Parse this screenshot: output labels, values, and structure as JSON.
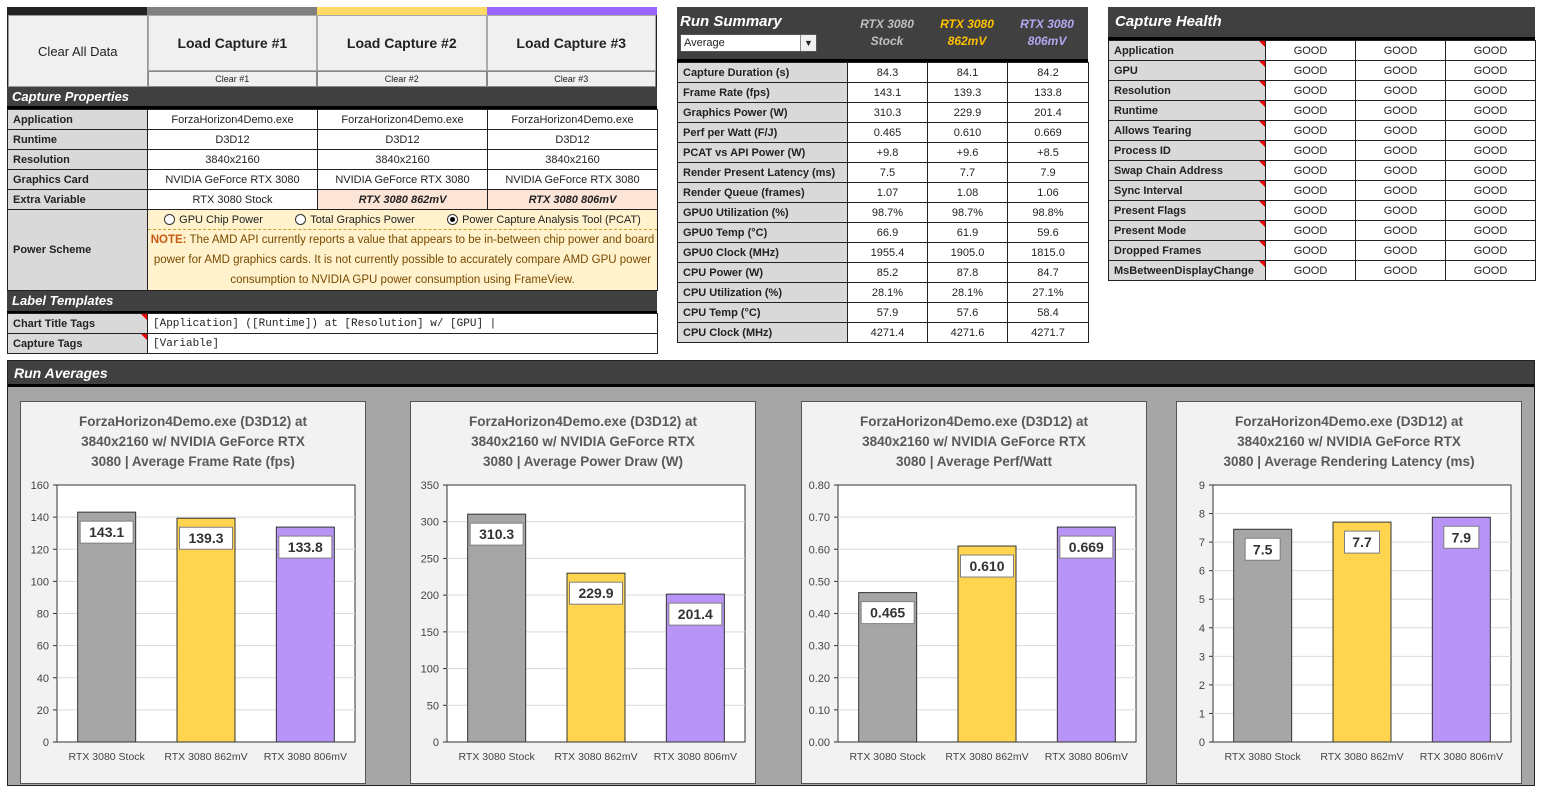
{
  "colors": {
    "capture1": "#a6a6a6",
    "capture2": "#ffd54f",
    "capture3": "#b794f6",
    "header_bg": "#404040",
    "capture1_text": "#bfbfbf",
    "capture2_text": "#ffc000",
    "capture3_text": "#b4a7f0"
  },
  "controls": {
    "clear_all": "Clear All Data",
    "load": [
      "Load Capture #1",
      "Load Capture #2",
      "Load Capture #3"
    ],
    "clear": [
      "Clear #1",
      "Clear #2",
      "Clear #3"
    ]
  },
  "capture_properties": {
    "title": "Capture Properties",
    "rows": [
      {
        "label": "Application",
        "values": [
          "ForzaHorizon4Demo.exe",
          "ForzaHorizon4Demo.exe",
          "ForzaHorizon4Demo.exe"
        ]
      },
      {
        "label": "Runtime",
        "values": [
          "D3D12",
          "D3D12",
          "D3D12"
        ]
      },
      {
        "label": "Resolution",
        "values": [
          "3840x2160",
          "3840x2160",
          "3840x2160"
        ]
      },
      {
        "label": "Graphics Card",
        "values": [
          "NVIDIA GeForce RTX 3080",
          "NVIDIA GeForce RTX 3080",
          "NVIDIA GeForce RTX 3080"
        ]
      },
      {
        "label": "Extra Variable",
        "values": [
          "RTX 3080 Stock",
          "RTX 3080 862mV",
          "RTX 3080 806mV"
        ]
      }
    ],
    "power_scheme": {
      "label": "Power Scheme",
      "options": [
        "GPU Chip Power",
        "Total Graphics Power",
        "Power Capture Analysis Tool (PCAT)"
      ],
      "selected": 2,
      "note_prefix": "NOTE:",
      "note": " The AMD API currently reports a value that appears to be in-between chip power and board power for AMD graphics cards. It is not currently possible to accurately compare AMD GPU power consumption to NVIDIA GPU power consumption using FrameView."
    }
  },
  "label_templates": {
    "title": "Label Templates",
    "rows": [
      {
        "label": "Chart Title Tags",
        "value": "[Application] ([Runtime]) at [Resolution] w/ [GPU] |"
      },
      {
        "label": "Capture Tags",
        "value": "[Variable]"
      }
    ]
  },
  "run_summary": {
    "title": "Run Summary",
    "dropdown": "Average",
    "columns": [
      [
        "RTX 3080",
        "Stock"
      ],
      [
        "RTX 3080",
        "862mV"
      ],
      [
        "RTX 3080",
        "806mV"
      ]
    ],
    "rows": [
      {
        "label": "Capture Duration (s)",
        "values": [
          "84.3",
          "84.1",
          "84.2"
        ]
      },
      {
        "label": "Frame Rate (fps)",
        "values": [
          "143.1",
          "139.3",
          "133.8"
        ]
      },
      {
        "label": "Graphics Power (W)",
        "values": [
          "310.3",
          "229.9",
          "201.4"
        ]
      },
      {
        "label": "Perf per Watt (F/J)",
        "values": [
          "0.465",
          "0.610",
          "0.669"
        ]
      },
      {
        "label": "PCAT vs API Power (W)",
        "values": [
          "+9.8",
          "+9.6",
          "+8.5"
        ]
      },
      {
        "label": "Render Present Latency (ms)",
        "values": [
          "7.5",
          "7.7",
          "7.9"
        ]
      },
      {
        "label": "Render Queue (frames)",
        "values": [
          "1.07",
          "1.08",
          "1.06"
        ]
      },
      {
        "label": "GPU0 Utilization (%)",
        "values": [
          "98.7%",
          "98.7%",
          "98.8%"
        ]
      },
      {
        "label": "GPU0 Temp (°C)",
        "values": [
          "66.9",
          "61.9",
          "59.6"
        ]
      },
      {
        "label": "GPU0 Clock (MHz)",
        "values": [
          "1955.4",
          "1905.0",
          "1815.0"
        ]
      },
      {
        "label": "CPU Power (W)",
        "values": [
          "85.2",
          "87.8",
          "84.7"
        ]
      },
      {
        "label": "CPU Utilization (%)",
        "values": [
          "28.1%",
          "28.1%",
          "27.1%"
        ]
      },
      {
        "label": "CPU Temp (°C)",
        "values": [
          "57.9",
          "57.6",
          "58.4"
        ]
      },
      {
        "label": "CPU Clock (MHz)",
        "values": [
          "4271.4",
          "4271.6",
          "4271.7"
        ]
      }
    ]
  },
  "capture_health": {
    "title": "Capture Health",
    "rows": [
      {
        "label": "Application",
        "values": [
          "GOOD",
          "GOOD",
          "GOOD"
        ]
      },
      {
        "label": "GPU",
        "values": [
          "GOOD",
          "GOOD",
          "GOOD"
        ]
      },
      {
        "label": "Resolution",
        "values": [
          "GOOD",
          "GOOD",
          "GOOD"
        ]
      },
      {
        "label": "Runtime",
        "values": [
          "GOOD",
          "GOOD",
          "GOOD"
        ]
      },
      {
        "label": "Allows Tearing",
        "values": [
          "GOOD",
          "GOOD",
          "GOOD"
        ]
      },
      {
        "label": "Process ID",
        "values": [
          "GOOD",
          "GOOD",
          "GOOD"
        ]
      },
      {
        "label": "Swap Chain Address",
        "values": [
          "GOOD",
          "GOOD",
          "GOOD"
        ]
      },
      {
        "label": "Sync Interval",
        "values": [
          "GOOD",
          "GOOD",
          "GOOD"
        ]
      },
      {
        "label": "Present Flags",
        "values": [
          "GOOD",
          "GOOD",
          "GOOD"
        ]
      },
      {
        "label": "Present Mode",
        "values": [
          "GOOD",
          "GOOD",
          "GOOD"
        ]
      },
      {
        "label": "Dropped Frames",
        "values": [
          "GOOD",
          "GOOD",
          "GOOD"
        ]
      },
      {
        "label": "MsBetweenDisplayChange",
        "values": [
          "GOOD",
          "GOOD",
          "GOOD"
        ]
      }
    ]
  },
  "run_averages": {
    "title": "Run Averages"
  },
  "chart_data": [
    {
      "type": "bar",
      "title": [
        "ForzaHorizon4Demo.exe (D3D12) at",
        "3840x2160 w/ NVIDIA GeForce RTX",
        "3080 | Average Frame Rate (fps)"
      ],
      "categories": [
        "RTX 3080 Stock",
        "RTX 3080 862mV",
        "RTX 3080 806mV"
      ],
      "values": [
        143.1,
        139.3,
        133.8
      ],
      "labels": [
        "143.1",
        "139.3",
        "133.8"
      ],
      "ylim": [
        0,
        160
      ],
      "yticks": [
        "0",
        "20",
        "40",
        "60",
        "80",
        "100",
        "120",
        "140",
        "160"
      ],
      "xlabel": "",
      "ylabel": "",
      "grid": true
    },
    {
      "type": "bar",
      "title": [
        "ForzaHorizon4Demo.exe (D3D12) at",
        "3840x2160 w/ NVIDIA GeForce RTX",
        "3080 | Average Power Draw (W)"
      ],
      "categories": [
        "RTX 3080 Stock",
        "RTX 3080 862mV",
        "RTX 3080 806mV"
      ],
      "values": [
        310.3,
        229.9,
        201.4
      ],
      "labels": [
        "310.3",
        "229.9",
        "201.4"
      ],
      "ylim": [
        0,
        350
      ],
      "yticks": [
        "0",
        "50",
        "100",
        "150",
        "200",
        "250",
        "300",
        "350"
      ],
      "xlabel": "",
      "ylabel": "",
      "grid": true
    },
    {
      "type": "bar",
      "title": [
        "ForzaHorizon4Demo.exe (D3D12) at",
        "3840x2160 w/ NVIDIA GeForce RTX",
        "3080 | Average Perf/Watt"
      ],
      "categories": [
        "RTX 3080 Stock",
        "RTX 3080 862mV",
        "RTX 3080 806mV"
      ],
      "values": [
        0.465,
        0.61,
        0.669
      ],
      "labels": [
        "0.465",
        "0.610",
        "0.669"
      ],
      "ylim": [
        0,
        0.8
      ],
      "yticks": [
        "0.00",
        "0.10",
        "0.20",
        "0.30",
        "0.40",
        "0.50",
        "0.60",
        "0.70",
        "0.80"
      ],
      "xlabel": "",
      "ylabel": "",
      "grid": true
    },
    {
      "type": "bar",
      "title": [
        "ForzaHorizon4Demo.exe (D3D12) at",
        "3840x2160 w/ NVIDIA GeForce RTX",
        "3080 | Average Rendering Latency (ms)"
      ],
      "categories": [
        "RTX 3080 Stock",
        "RTX 3080 862mV",
        "RTX 3080 806mV"
      ],
      "values": [
        7.45,
        7.7,
        7.87
      ],
      "labels": [
        "7.5",
        "7.7",
        "7.9"
      ],
      "ylim": [
        0,
        9
      ],
      "yticks": [
        "0",
        "1",
        "2",
        "3",
        "4",
        "5",
        "6",
        "7",
        "8",
        "9"
      ],
      "xlabel": "",
      "ylabel": "",
      "grid": true
    }
  ]
}
